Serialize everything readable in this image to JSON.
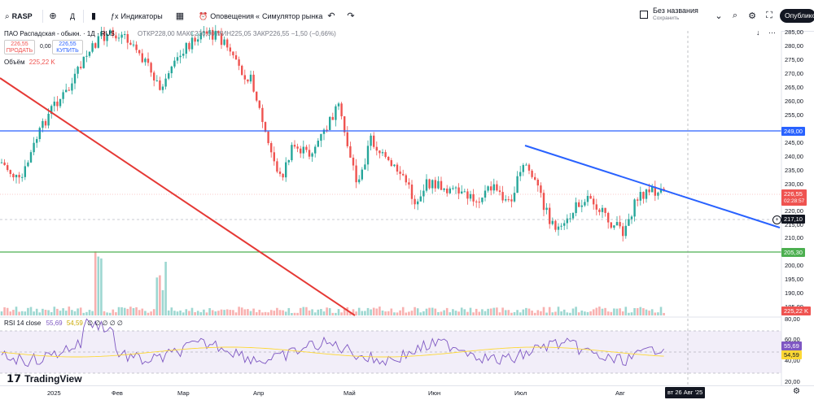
{
  "toolbar": {
    "symbol": "RASP",
    "interval": "Д",
    "indicators_label": "Индикаторы",
    "alerts_label": "Оповещения",
    "replay_label": "Симулятор рынка",
    "layout_name": "Без названия",
    "layout_status": "Сохранить",
    "publish_label": "Опубликовать"
  },
  "legend": {
    "title": "ПАО Распадская - обыкн. · 1Д · RUS",
    "ohlc": "ОТКР228,00 МАКС230,00 МИН225,05 ЗАКР226,55 −1,50 (−0,66%)",
    "sell_price": "226,55",
    "sell_label": "ПРОДАТЬ",
    "spread": "0,00",
    "buy_price": "226,55",
    "buy_label": "КУПИТЬ",
    "volume_label": "Объём",
    "volume_value": "225,22 K"
  },
  "rsi": {
    "label": "RSI 14 close",
    "value1": "55,69",
    "value2": "54,59",
    "extra": "∅ ∅ ∅ ∅ ∅"
  },
  "brand": "TradingView",
  "price_axis": [
    "285,00",
    "280,00",
    "275,00",
    "270,00",
    "265,00",
    "260,00",
    "255,00",
    "250,00",
    "245,00",
    "240,00",
    "235,00",
    "230,00",
    "225,00",
    "220,00",
    "215,00",
    "210,00",
    "200,00",
    "195,00",
    "190,00",
    "185,00"
  ],
  "rsi_axis": [
    "80,00",
    "60,00",
    "40,00",
    "20,00"
  ],
  "price_tags": {
    "blue_line": "249,00",
    "last_price": "226,55",
    "countdown": "02:28:57",
    "crosshair_price": "217,10",
    "green_line": "205,30",
    "volume": "225,22 K",
    "rsi1": "55,69",
    "rsi2": "54,59"
  },
  "time_axis": [
    "2025",
    "Фев",
    "Мар",
    "Апр",
    "Май",
    "Июн",
    "Июл",
    "Авг"
  ],
  "time_cursor": "вт 26 Авг '25",
  "colors": {
    "up": "#26a69a",
    "down": "#ef5350",
    "blue_line": "#2962ff",
    "green_line": "#4caf50",
    "trend_red": "#e53935",
    "rsi_line": "#7e57c2",
    "rsi_ma": "#fdd835"
  }
}
